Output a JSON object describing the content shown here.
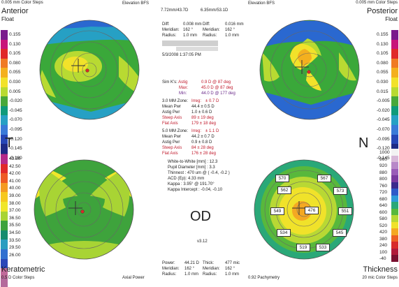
{
  "corners": {
    "tl": {
      "steps": "0.005 mm Color Steps",
      "name": "Anterior",
      "type": "Float"
    },
    "tr": {
      "steps": "0.005 mm Color Steps",
      "name": "Posterior",
      "type": "Float"
    },
    "bl": {
      "name": "Keratometric",
      "steps": "0.5 D Color Steps"
    },
    "br": {
      "name": "Thickness",
      "steps": "20 mic Color Steps"
    }
  },
  "map_titles": {
    "tl": "Elevation BFS",
    "tl_vals": "7.72mm/43.7D",
    "tr": "Elevation BFS",
    "tr_vals": "6.35mm/53.1D",
    "bl": "Axial Power",
    "br": "0.92 Pachymetry"
  },
  "scales": {
    "left_top": [
      "0.155",
      "0.130",
      "0.105",
      "0.080",
      "0.055",
      "0.030",
      "0.005",
      "-0.020",
      "-0.045",
      "-0.070",
      "-0.095",
      "-0.120",
      "-0.145",
      "-0.160"
    ],
    "left_bottom": [
      "43.50",
      "42.50",
      "42.00",
      "41.00",
      "40.00",
      "39.00",
      "38.00",
      "37.00",
      "36.50",
      "35.50",
      "34.50",
      "33.50",
      "29.50",
      "26.00"
    ],
    "right_top": [
      "0.155",
      "0.130",
      "0.105",
      "0.080",
      "0.055",
      "0.030",
      "0.015",
      "-0.005",
      "-0.020",
      "-0.045",
      "-0.070",
      "-0.095",
      "-0.120",
      "-0.145"
    ],
    "right_bottom": [
      "1000",
      "960",
      "920",
      "880",
      "800",
      "760",
      "720",
      "680",
      "640",
      "600",
      "580",
      "520",
      "420",
      "380",
      "240",
      "100",
      "-40"
    ]
  },
  "scale_colors": {
    "top": [
      "#7a1a8c",
      "#c8147a",
      "#e0282a",
      "#f07a24",
      "#f4b01e",
      "#f2e22a",
      "#b8da32",
      "#48a83a",
      "#0f9a7a",
      "#27a0c4",
      "#3a7ad8",
      "#2646b6",
      "#1d2a86",
      "#5a2a7c"
    ],
    "bottom": [
      "#b42a8a",
      "#e0282a",
      "#ee5a24",
      "#f49a22",
      "#f6c81e",
      "#f0e62a",
      "#a8d434",
      "#3ea33c",
      "#168c6e",
      "#2a9dc0",
      "#3170d0",
      "#2a48b8",
      "#c06a9a",
      "#b46a9c"
    ],
    "thick": [
      "#f2f2f2",
      "#d8b8d8",
      "#b888c8",
      "#9a5cb8",
      "#7a3aa0",
      "#3a2a8e",
      "#2e5ac8",
      "#2e9ad8",
      "#2aa878",
      "#58b83c",
      "#b8d834",
      "#f0e22a",
      "#f4a822",
      "#ec6024",
      "#d82a2a",
      "#b01a3a",
      "#7a1030"
    ]
  },
  "center_data": {
    "diff1_label": "Diff:",
    "diff1_val": "0.008 mm",
    "mer1_label": "Meridian:",
    "mer1_val": "162 °",
    "rad1_label": "Radius:",
    "rad1_val": "1.0 mm",
    "diff2_label": "Diff:",
    "diff2_val": "0.016 mm",
    "mer2_label": "Meridian:",
    "mer2_val": "162 °",
    "rad2_label": "Radius:",
    "rad2_val": "1.0 mm",
    "date": "5/3/2008 1:37:05 PM"
  },
  "k": {
    "simk_label": "Sim K's:",
    "simk_astig": "Astig",
    "simk_astig_val": "0.9 D @ 87 deg",
    "max_label": "Max:",
    "max_val": "45.0 D @ 87 deg",
    "min_label": "Min:",
    "min_val": "44.0 D @ 177 deg",
    "z3_label": "3.0 MM Zone:",
    "z3_irreg": "Irreg:",
    "z3_irreg_val": "± 0.7 D",
    "z3_mean_label": "Mean Pwr",
    "z3_mean_val": "44.4   ± 0.5 D",
    "z3_astig_label": "Astig Pwr",
    "z3_astig_val": "1.0    ± 0.6 D",
    "z3_steep_label": "Steep Axis",
    "z3_steep_val": "89     ± 19 deg",
    "z3_flat_label": "Flat Axis",
    "z3_flat_val": "179    ± 18 deg",
    "z5_label": "5.0 MM Zone:",
    "z5_irreg": "Irreg:",
    "z5_irreg_val": "± 1.1 D",
    "z5_mean_label": "Mean Pwr",
    "z5_mean_val": "44.2   ± 0.7 D",
    "z5_astig_label": "Astig Pwr",
    "z5_astig_val": "0.9    ± 0.8 D",
    "z5_steep_label": "Steep Axis",
    "z5_steep_val": "84     ± 28 deg",
    "z5_flat_label": "Flat Axis",
    "z5_flat_val": "176    ± 28 deg",
    "wtw": "White-to-White [mm] : 12.3",
    "pupil": "Pupil Diameter [mm] : 3.3",
    "thinnest": "Thinnest : 470 um @ ( -0.4, -0.2 )",
    "acd": "ACD (Ep): 4.33 mm",
    "kappa": "Kappa : 3.95° @ 191.70°",
    "kappa_int": "Kappa Intercept : -0.04, -0.10",
    "version": "v3.12"
  },
  "side_letters": {
    "t": "T",
    "n": "N",
    "od": "OD"
  },
  "bottom_data": {
    "power_label": "Power:",
    "power_val": "44.21 D",
    "mer_label": "Meridian:",
    "mer_val": "162 °",
    "rad_label": "Radius:",
    "rad_val": "1.0 mm",
    "thick_label": "Thick:",
    "thick_val": "477 mic",
    "mer2_label": "Meridian:",
    "mer2_val": "162 °",
    "rad2_label": "Radius:",
    "rad2_val": "1.0 mm"
  },
  "pachy": [
    "570",
    "567",
    "562",
    "573",
    "549",
    "476",
    "551",
    "534",
    "545",
    "519",
    "533"
  ]
}
